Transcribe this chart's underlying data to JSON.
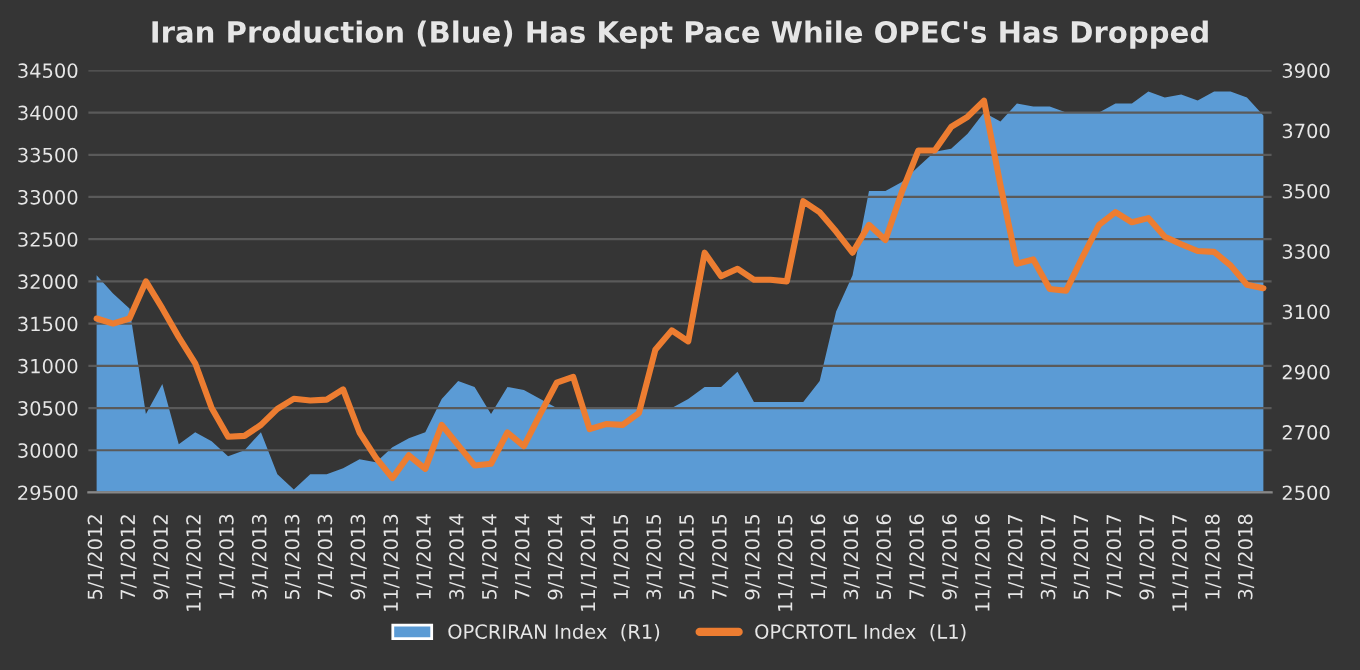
{
  "chart_data": {
    "type": "line",
    "title": "Iran Production (Blue) Has Kept Pace While OPEC's Has Dropped",
    "categories": [
      "5/1/2012",
      null,
      "7/1/2012",
      null,
      "9/1/2012",
      null,
      "11/1/2012",
      null,
      "1/1/2013",
      null,
      "3/1/2013",
      null,
      "5/1/2013",
      null,
      "7/1/2013",
      null,
      "9/1/2013",
      null,
      "11/1/2013",
      null,
      "1/1/2014",
      null,
      "3/1/2014",
      null,
      "5/1/2014",
      null,
      "7/1/2014",
      null,
      "9/1/2014",
      null,
      "11/1/2014",
      null,
      "1/1/2015",
      null,
      "3/1/2015",
      null,
      "5/1/2015",
      null,
      "7/1/2015",
      null,
      "9/1/2015",
      null,
      "11/1/2015",
      null,
      "1/1/2016",
      null,
      "3/1/2016",
      null,
      "5/1/2016",
      null,
      "7/1/2016",
      null,
      "9/1/2016",
      null,
      "11/1/2016",
      null,
      "1/1/2017",
      null,
      "3/1/2017",
      null,
      "5/1/2017",
      null,
      "7/1/2017",
      null,
      "9/1/2017",
      null,
      "11/1/2017",
      null,
      "1/1/2018",
      null,
      "3/1/2018",
      null
    ],
    "series": [
      {
        "name": "OPCRIRAN Index  (R1)",
        "type": "area",
        "axis": "y2",
        "color": "#5b9bd5",
        "values": [
          3220,
          3160,
          3110,
          2760,
          2860,
          2660,
          2700,
          2670,
          2620,
          2640,
          2700,
          2560,
          2510,
          2560,
          2560,
          2580,
          2610,
          2600,
          2650,
          2680,
          2700,
          2810,
          2870,
          2850,
          2760,
          2850,
          2840,
          2810,
          2780,
          2780,
          2780,
          2780,
          2780,
          2780,
          2780,
          2780,
          2810,
          2850,
          2850,
          2900,
          2800,
          2800,
          2800,
          2800,
          2870,
          3100,
          3220,
          3500,
          3500,
          3530,
          3580,
          3630,
          3640,
          3690,
          3760,
          3730,
          3790,
          3780,
          3780,
          3760,
          3760,
          3760,
          3790,
          3790,
          3830,
          3810,
          3820,
          3800,
          3830,
          3830,
          3810,
          3750
        ]
      },
      {
        "name": "OPCRTOTL Index  (L1)",
        "color": "#ed7d31",
        "values": [
          31560,
          31500,
          31560,
          32000,
          31680,
          31340,
          31030,
          30500,
          30160,
          30170,
          30300,
          30490,
          30610,
          30590,
          30600,
          30720,
          30210,
          29910,
          29670,
          29940,
          29780,
          30300,
          30060,
          29820,
          29840,
          30210,
          30050,
          30430,
          30800,
          30870,
          30250,
          30310,
          30300,
          30440,
          31190,
          31420,
          31290,
          32340,
          32060,
          32150,
          32020,
          32020,
          32000,
          32950,
          32820,
          32590,
          32340,
          32670,
          32490,
          33060,
          33550,
          33550,
          33830,
          33950,
          34140,
          33140,
          32210,
          32260,
          31910,
          31890,
          32290,
          32670,
          32820,
          32700,
          32750,
          32530,
          32440,
          32360,
          32350,
          32190,
          31960,
          31920
        ]
      }
    ],
    "ylim": [
      29500,
      34500
    ],
    "yticks": [
      29500,
      30000,
      30500,
      31000,
      31500,
      32000,
      32500,
      33000,
      33500,
      34000,
      34500
    ],
    "y2lim": [
      2500,
      3900
    ],
    "y2ticks": [
      2500,
      2700,
      2900,
      3100,
      3300,
      3500,
      3700,
      3900
    ],
    "grid": "y",
    "legend": "bottom"
  }
}
